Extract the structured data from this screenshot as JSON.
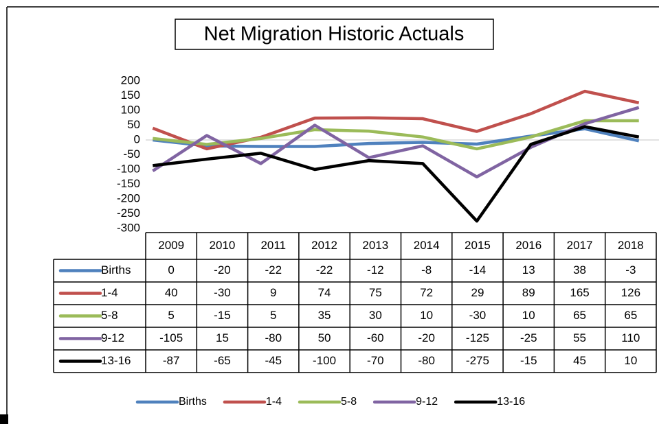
{
  "chart_data": {
    "type": "line",
    "title": "Net Migration Historic Actuals",
    "categories": [
      "2009",
      "2010",
      "2011",
      "2012",
      "2013",
      "2014",
      "2015",
      "2016",
      "2017",
      "2018"
    ],
    "series": [
      {
        "name": "Births",
        "color": "#4f81bd",
        "values": [
          0,
          -20,
          -22,
          -22,
          -12,
          -8,
          -14,
          13,
          38,
          -3
        ]
      },
      {
        "name": "1-4",
        "color": "#c0504d",
        "values": [
          40,
          -30,
          9,
          74,
          75,
          72,
          29,
          89,
          165,
          126
        ]
      },
      {
        "name": "5-8",
        "color": "#9bbb59",
        "values": [
          5,
          -15,
          5,
          35,
          30,
          10,
          -30,
          10,
          65,
          65
        ]
      },
      {
        "name": "9-12",
        "color": "#8064a2",
        "values": [
          -105,
          15,
          -80,
          50,
          -60,
          -20,
          -125,
          -25,
          55,
          110
        ]
      },
      {
        "name": "13-16",
        "color": "#000000",
        "values": [
          -87,
          -65,
          -45,
          -100,
          -70,
          -80,
          -275,
          -15,
          45,
          10
        ]
      }
    ],
    "ylim": [
      -300,
      200
    ],
    "yticks": [
      200,
      150,
      100,
      50,
      0,
      -50,
      -100,
      -150,
      -200,
      -250,
      -300
    ],
    "legend": "bottom"
  }
}
